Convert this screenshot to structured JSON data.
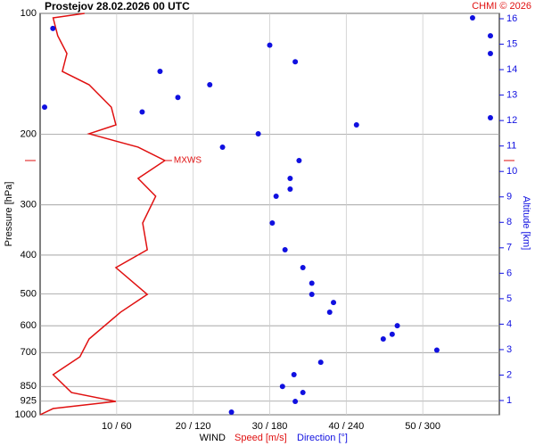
{
  "chart_data": {
    "type": "sounding",
    "title": "Prostejov    28.02.2026 00 UTC",
    "credit": "CHMI © 2026",
    "y_label": "Pressure [hPa]",
    "y2_label": "Altitude [km]",
    "x_label": "WIND",
    "x_label_speed": "Speed [m/s]",
    "x_label_direction": "Direction [°]",
    "annotation": {
      "text": "MXWS",
      "pressure": 232.6,
      "speed": 16.3
    },
    "log_y": true,
    "grid": true,
    "ylim": [
      1000,
      100
    ],
    "yticks": [
      100,
      200,
      300,
      400,
      500,
      600,
      700,
      850,
      925,
      1000
    ],
    "y2lim": [
      0.44,
      16.21
    ],
    "y2ticks": [
      1,
      2,
      3,
      4,
      5,
      6,
      7,
      8,
      9,
      10,
      11,
      12,
      13,
      14,
      15,
      16
    ],
    "xlim": [
      0,
      60
    ],
    "direction_lim": [
      0,
      360
    ],
    "xticks": [
      {
        "value": 10,
        "label": "10 / 60"
      },
      {
        "value": 20,
        "label": "20 / 120"
      },
      {
        "value": 30,
        "label": "30 / 180"
      },
      {
        "value": 40,
        "label": "40 / 240"
      },
      {
        "value": 50,
        "label": "50 / 300"
      }
    ],
    "series": [
      {
        "name": "Speed",
        "color": "#e01010",
        "pressure": [
          100,
          102.6,
          113.7,
          125.9,
          139.5,
          150.6,
          171.2,
          189.6,
          199.5,
          215.4,
          232.6,
          257.7,
          285.5,
          332.9,
          388,
          429.9,
          501.2,
          555.3,
          647.3,
          717.1,
          794.3,
          880.2,
          926.4,
          965,
          1000
        ],
        "values": [
          5.8,
          1.7,
          2.3,
          3.5,
          2.9,
          6.4,
          9.3,
          9.9,
          6.4,
          12.8,
          16.3,
          12.8,
          15.1,
          13.4,
          14.0,
          9.9,
          14.0,
          10.5,
          6.4,
          5.2,
          1.7,
          4.1,
          9.9,
          1.7,
          0
        ]
      },
      {
        "name": "Direction",
        "color": "#1010e0",
        "pressure": [
          102.6,
          109,
          113.7,
          120,
          125.9,
          132,
          139.5,
          150.6,
          162,
          171.2,
          176,
          182,
          189.6,
          199.5,
          215.4,
          232.6,
          257.7,
          274,
          285.5,
          332.9,
          388,
          429.9,
          470,
          501.2,
          525,
          555.3,
          600,
          630,
          647.3,
          690,
          740,
          794.3,
          850,
          880.2,
          926.4,
          985
        ],
        "values": [
          339,
          10,
          353,
          180,
          353,
          200,
          94,
          133,
          108,
          3.5,
          80,
          353,
          248,
          171,
          143,
          203,
          196,
          196,
          185,
          182,
          192,
          206,
          213,
          213,
          230,
          227,
          280,
          276,
          269,
          311,
          220,
          199,
          190,
          206,
          200,
          150
        ]
      }
    ]
  }
}
